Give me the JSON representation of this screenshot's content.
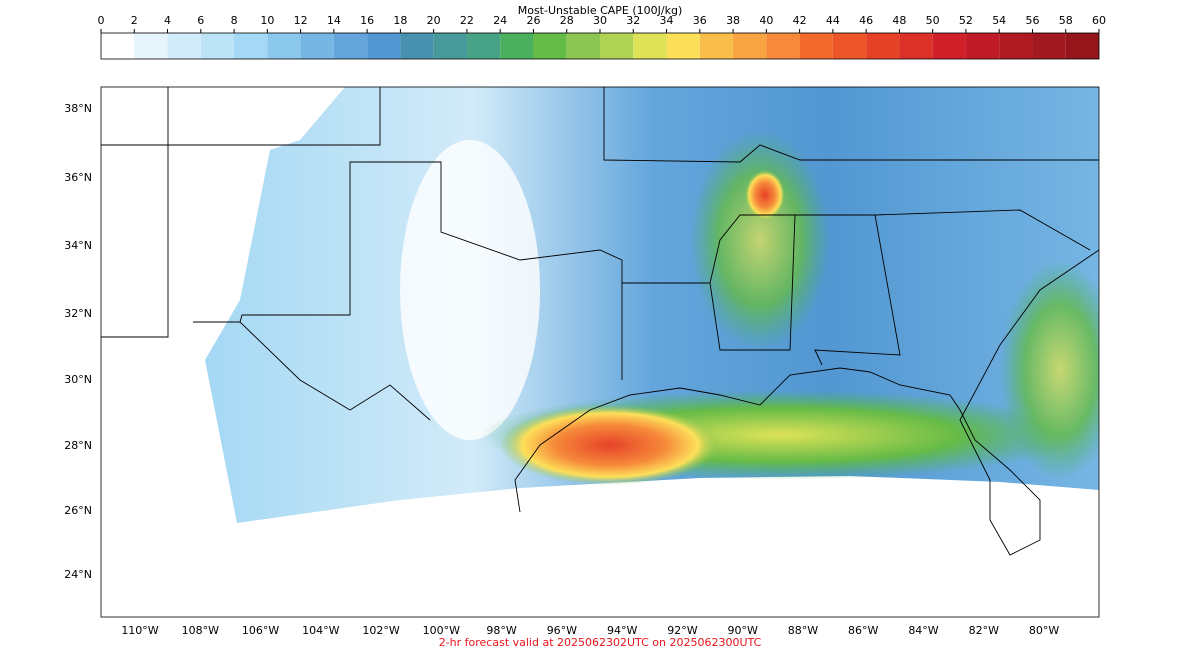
{
  "map": {
    "colorbar": {
      "title": "Most-Unstable CAPE (100J/kg)",
      "ticks": [
        0,
        2,
        4,
        6,
        8,
        10,
        12,
        14,
        16,
        18,
        20,
        22,
        24,
        26,
        28,
        30,
        32,
        34,
        36,
        38,
        40,
        42,
        44,
        46,
        48,
        50,
        52,
        54,
        56,
        58,
        60
      ],
      "colors": [
        "#ffffff",
        "#e6f4fc",
        "#d2ebf9",
        "#bde3f7",
        "#a5d8f4",
        "#8bc8ec",
        "#76b6e4",
        "#64a6dc",
        "#5297d2",
        "#4892b0",
        "#47999a",
        "#48a386",
        "#4ab060",
        "#65bb47",
        "#8ec653",
        "#b0d356",
        "#dde257",
        "#fde05a",
        "#f9bd4a",
        "#f8a443",
        "#f6893a",
        "#f26a2e",
        "#ee5528",
        "#e64228",
        "#dc3129",
        "#d11f2a",
        "#c01b26",
        "#b01a22",
        "#a2191f",
        "#94161b"
      ]
    },
    "lat_labels": [
      "38°N",
      "36°N",
      "34°N",
      "32°N",
      "30°N",
      "28°N",
      "26°N",
      "24°N"
    ],
    "lon_labels": [
      "110°W",
      "108°W",
      "106°W",
      "104°W",
      "102°W",
      "100°W",
      "98°W",
      "96°W",
      "94°W",
      "92°W",
      "90°W",
      "88°W",
      "86°W",
      "84°W",
      "82°W",
      "80°W"
    ],
    "footer": "2-hr forecast valid at 2025062302UTC on 2025062300UTC"
  }
}
